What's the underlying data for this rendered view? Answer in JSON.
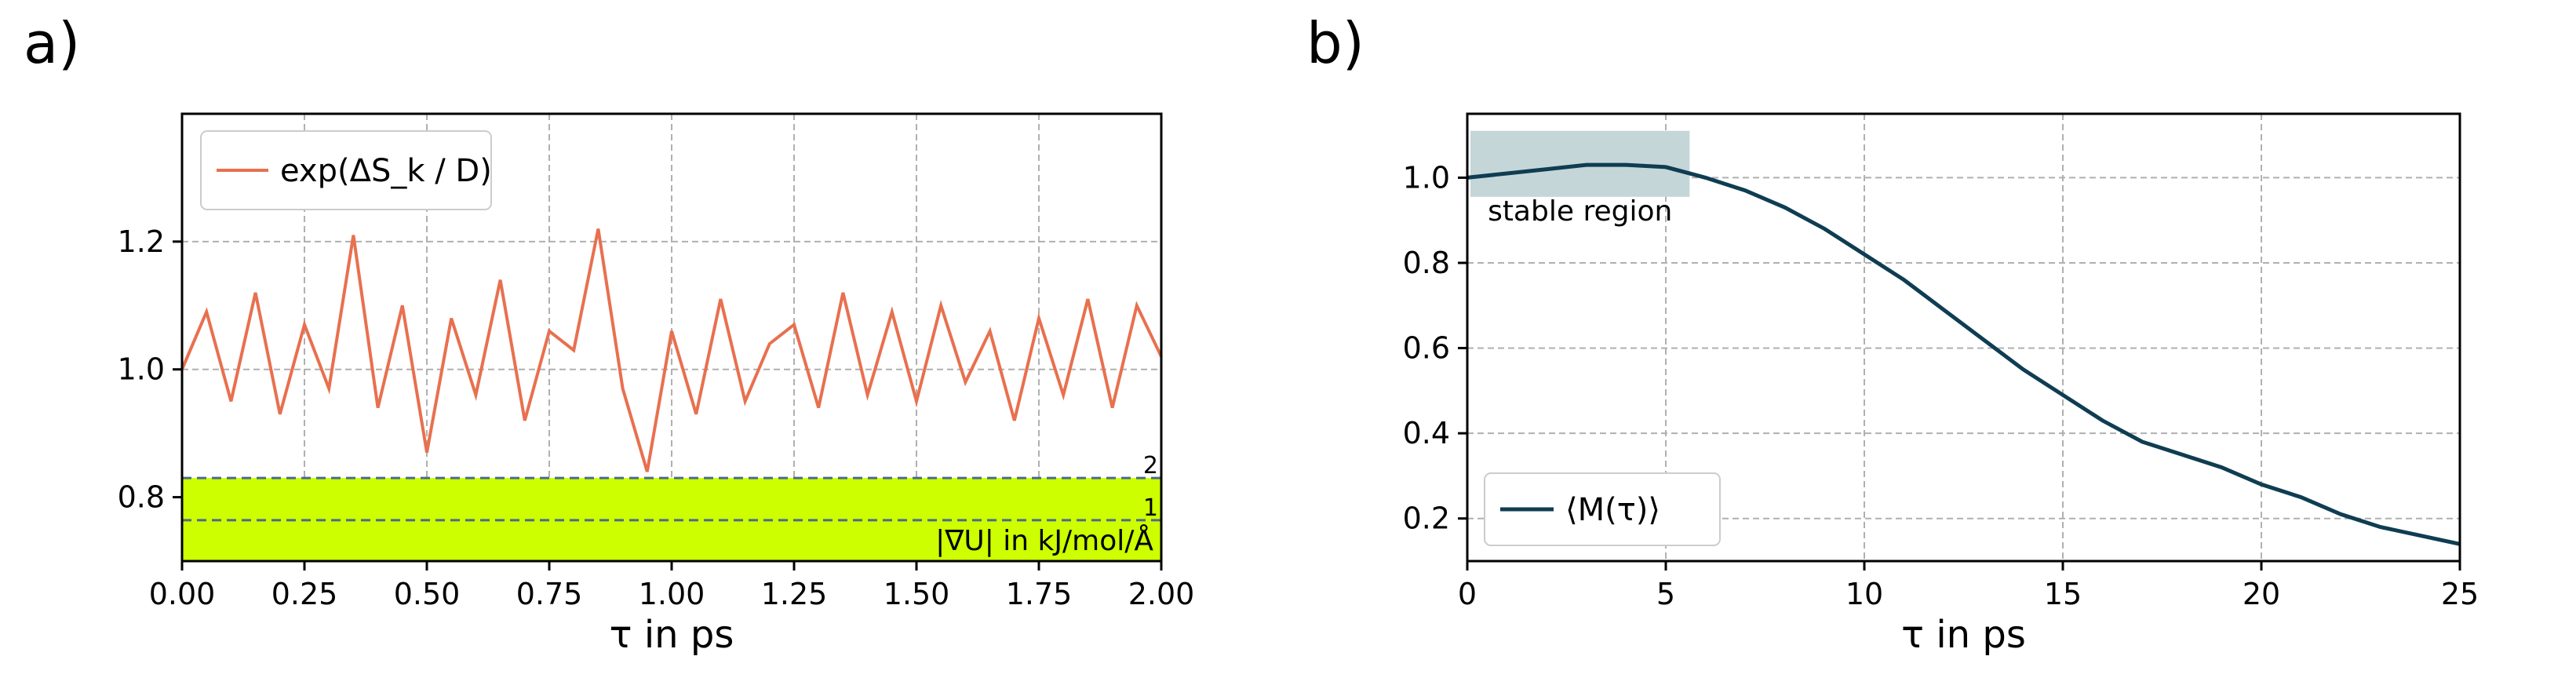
{
  "panel_labels": [
    "a)",
    "b)"
  ],
  "chart_data": [
    {
      "type": "line",
      "panel": "a)",
      "xlabel": "τ in ps",
      "ylabel": "",
      "xlim": [
        0.0,
        2.0
      ],
      "ylim": [
        0.7,
        1.4
      ],
      "xticks": [
        "0.00",
        "0.25",
        "0.50",
        "0.75",
        "1.00",
        "1.25",
        "1.50",
        "1.75",
        "2.00"
      ],
      "xtick_values": [
        0.0,
        0.25,
        0.5,
        0.75,
        1.0,
        1.25,
        1.5,
        1.75,
        2.0
      ],
      "yticks": [
        "0.8",
        "1.0",
        "1.2"
      ],
      "ytick_values": [
        0.8,
        1.0,
        1.2
      ],
      "grid": true,
      "legend": {
        "placement": "top-left",
        "entries": [
          "exp(ΔS_k / D)"
        ]
      },
      "series": [
        {
          "name": "exp(ΔS_k / D)",
          "color": "#e8704f",
          "x": [
            0.0,
            0.05,
            0.1,
            0.15,
            0.2,
            0.25,
            0.3,
            0.35,
            0.4,
            0.45,
            0.5,
            0.55,
            0.6,
            0.65,
            0.7,
            0.75,
            0.8,
            0.85,
            0.9,
            0.95,
            1.0,
            1.05,
            1.1,
            1.15,
            1.2,
            1.25,
            1.3,
            1.35,
            1.4,
            1.45,
            1.5,
            1.55,
            1.6,
            1.65,
            1.7,
            1.75,
            1.8,
            1.85,
            1.9,
            1.95,
            2.0
          ],
          "values": [
            1.0,
            1.09,
            0.95,
            1.12,
            0.93,
            1.07,
            0.97,
            1.21,
            0.94,
            1.1,
            0.87,
            1.08,
            0.96,
            1.14,
            0.92,
            1.06,
            1.03,
            1.22,
            0.97,
            0.84,
            1.06,
            0.93,
            1.11,
            0.95,
            1.04,
            1.07,
            0.94,
            1.12,
            0.96,
            1.09,
            0.95,
            1.1,
            0.98,
            1.06,
            0.92,
            1.08,
            0.96,
            1.11,
            0.94,
            1.1,
            1.02
          ]
        }
      ],
      "threshold_band": {
        "from": 0.7,
        "to": 0.83,
        "color": "#cdff00",
        "label": "|∇U| in kJ/mol/Å"
      },
      "threshold_lines": [
        {
          "value": 0.83,
          "label": "2"
        },
        {
          "value": 0.764,
          "label": "1"
        }
      ],
      "colors": {
        "threshold_line": "#4b6b8a",
        "threshold_text": "#2e6b8a"
      }
    },
    {
      "type": "line",
      "panel": "b)",
      "xlabel": "τ in ps",
      "ylabel": "",
      "xlim": [
        0,
        25
      ],
      "ylim": [
        0.1,
        1.15
      ],
      "xticks": [
        "0",
        "5",
        "10",
        "15",
        "20",
        "25"
      ],
      "xtick_values": [
        0,
        5,
        10,
        15,
        20,
        25
      ],
      "yticks": [
        "0.2",
        "0.4",
        "0.6",
        "0.8",
        "1.0"
      ],
      "ytick_values": [
        0.2,
        0.4,
        0.6,
        0.8,
        1.0
      ],
      "grid": true,
      "legend": {
        "placement": "bottom-left",
        "entries": [
          "⟨M(τ)⟩"
        ]
      },
      "series": [
        {
          "name": "⟨M(τ)⟩",
          "color": "#0f3d52",
          "x": [
            0,
            1,
            2,
            3,
            4,
            5,
            6,
            7,
            8,
            9,
            10,
            11,
            12,
            13,
            14,
            15,
            16,
            17,
            18,
            19,
            20,
            21,
            22,
            23,
            24,
            25
          ],
          "values": [
            1.0,
            1.01,
            1.02,
            1.03,
            1.03,
            1.025,
            1.0,
            0.97,
            0.93,
            0.88,
            0.82,
            0.76,
            0.69,
            0.62,
            0.55,
            0.49,
            0.43,
            0.38,
            0.35,
            0.32,
            0.28,
            0.25,
            0.21,
            0.18,
            0.16,
            0.14
          ]
        }
      ],
      "annotation": {
        "label": "stable region",
        "x_from": 0,
        "x_to": 5.6,
        "y_from": 0.955,
        "y_to": 1.11,
        "color": "#c5d6d9"
      }
    }
  ]
}
